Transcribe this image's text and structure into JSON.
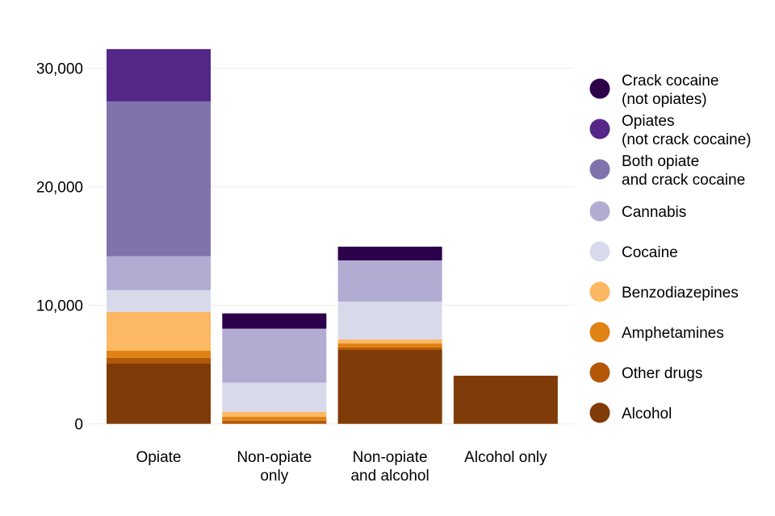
{
  "chart_data": {
    "type": "bar",
    "stacked": true,
    "title": "",
    "xlabel": "",
    "ylabel": "",
    "ylim": [
      0,
      31610
    ],
    "yticks": [
      0,
      10000,
      20000,
      30000
    ],
    "ytick_labels": [
      "0",
      "10,000",
      "20,000",
      "30,000"
    ],
    "grid": true,
    "legend_position": "right",
    "categories": [
      {
        "lines": [
          "Opiate"
        ]
      },
      {
        "lines": [
          "Non-opiate",
          "only"
        ]
      },
      {
        "lines": [
          "Non-opiate",
          "and alcohol"
        ]
      },
      {
        "lines": [
          "Alcohol only"
        ]
      }
    ],
    "series": [
      {
        "name": "Alcohol",
        "legend_lines": [
          "Alcohol"
        ],
        "color": "#7f3b08",
        "values": [
          5080,
          0,
          6240,
          4060
        ]
      },
      {
        "name": "Other drugs",
        "legend_lines": [
          "Other drugs"
        ],
        "color": "#b35806",
        "values": [
          480,
          270,
          200,
          0
        ]
      },
      {
        "name": "Amphetamines",
        "legend_lines": [
          "Amphetamines"
        ],
        "color": "#e08214",
        "values": [
          610,
          340,
          340,
          0
        ]
      },
      {
        "name": "Benzodiazepines",
        "legend_lines": [
          "Benzodiazepines"
        ],
        "color": "#fdb863",
        "values": [
          3270,
          410,
          340,
          0
        ]
      },
      {
        "name": "Cocaine",
        "legend_lines": [
          "Cocaine"
        ],
        "color": "#d8daeb",
        "values": [
          1840,
          2450,
          3200,
          0
        ]
      },
      {
        "name": "Cannabis",
        "legend_lines": [
          "Cannabis"
        ],
        "color": "#b2abd2",
        "values": [
          2860,
          4560,
          3470,
          0
        ]
      },
      {
        "name": "Both opiate and crack cocaine",
        "legend_lines": [
          "Both opiate",
          "and crack cocaine"
        ],
        "color": "#8073ac",
        "values": [
          13060,
          0,
          0,
          0
        ]
      },
      {
        "name": "Opiates (not crack cocaine)",
        "legend_lines": [
          "Opiates",
          "(not crack cocaine)"
        ],
        "color": "#542788",
        "values": [
          4420,
          0,
          0,
          0
        ]
      },
      {
        "name": "Crack cocaine (not opiates)",
        "legend_lines": [
          "Crack cocaine",
          "(not opiates)"
        ],
        "color": "#2d004b",
        "values": [
          0,
          1290,
          1160,
          0
        ]
      }
    ],
    "legend_order": [
      "Crack cocaine (not opiates)",
      "Opiates (not crack cocaine)",
      "Both opiate and crack cocaine",
      "Cannabis",
      "Cocaine",
      "Benzodiazepines",
      "Amphetamines",
      "Other drugs",
      "Alcohol"
    ]
  }
}
